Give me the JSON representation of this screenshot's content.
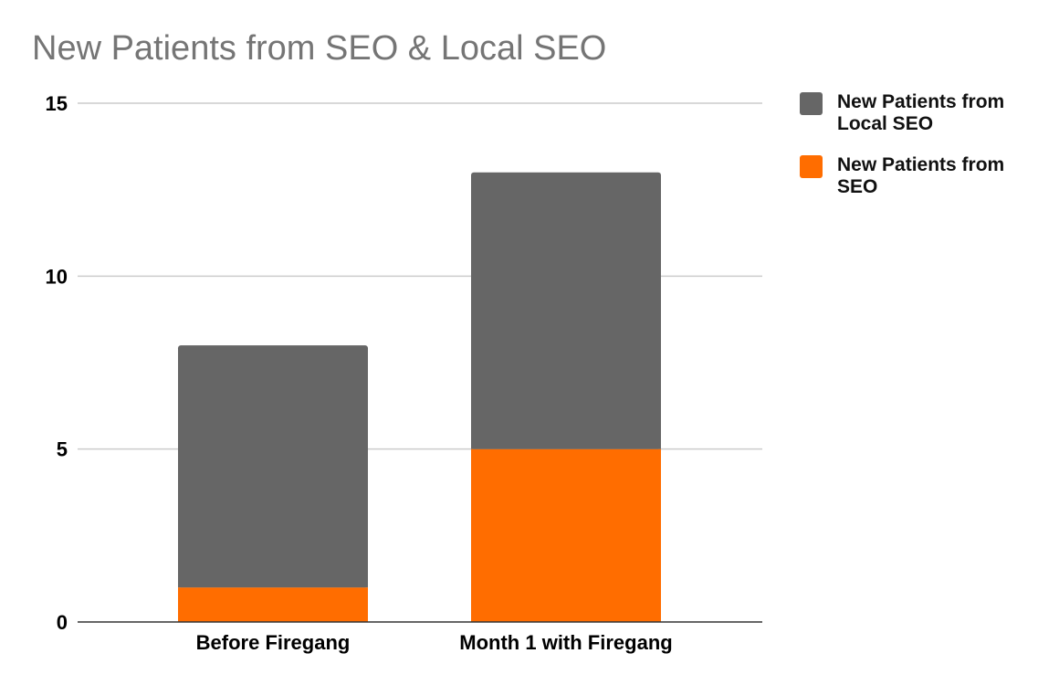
{
  "chart_data": {
    "type": "bar",
    "stacked": true,
    "title": "New Patients from SEO & Local SEO",
    "xlabel": "",
    "ylabel": "",
    "categories": [
      "Before Firegang",
      "Month 1 with Firegang"
    ],
    "series": [
      {
        "name": "New Patients from SEO",
        "values": [
          1,
          5
        ],
        "color": "#ff6d00"
      },
      {
        "name": "New Patients from Local SEO",
        "values": [
          7,
          8
        ],
        "color": "#666666"
      }
    ],
    "ylim": [
      0,
      15
    ],
    "yticks": [
      0,
      5,
      10,
      15
    ],
    "grid": true,
    "legend_position": "right"
  },
  "legend": [
    {
      "name": "New Patients from Local SEO",
      "color": "#666666"
    },
    {
      "name": "New Patients from SEO",
      "color": "#ff6d00"
    }
  ]
}
